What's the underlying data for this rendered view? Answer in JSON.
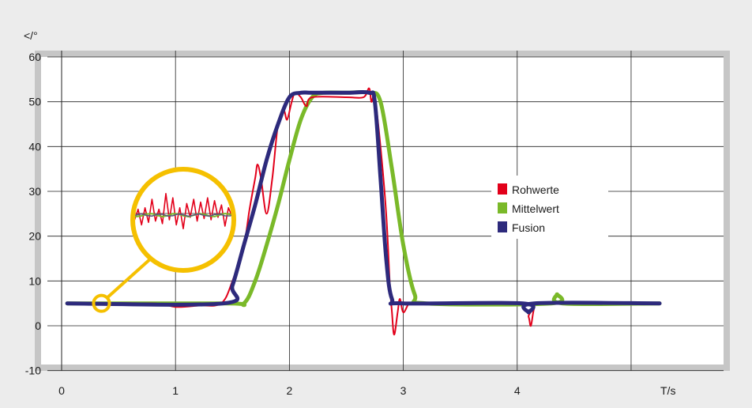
{
  "chart_data": {
    "type": "line",
    "ylabel": "</°",
    "xlabel": "T/s",
    "xlim": [
      0,
      5.25
    ],
    "ylim": [
      -10,
      60
    ],
    "x_ticks": [
      0,
      1,
      2,
      3,
      4
    ],
    "x_tick_labels": [
      "0",
      "1",
      "2",
      "3",
      "4"
    ],
    "y_ticks": [
      -10,
      0,
      10,
      20,
      30,
      40,
      50,
      60
    ],
    "y_tick_labels": [
      "-10",
      "0",
      "10",
      "20",
      "30",
      "40",
      "50",
      "60"
    ],
    "grid": true,
    "legend_position": "right",
    "series": [
      {
        "name": "Rohwerte",
        "color": "#e2001a",
        "x": [
          0.05,
          0.8,
          1.0,
          1.2,
          1.4,
          1.5,
          1.6,
          1.65,
          1.7,
          1.72,
          1.75,
          1.8,
          1.85,
          1.9,
          1.95,
          1.98,
          2.02,
          2.05,
          2.1,
          2.15,
          2.2,
          2.5,
          2.65,
          2.7,
          2.72,
          2.75,
          2.8,
          2.85,
          2.88,
          2.9,
          2.92,
          2.95,
          2.97,
          3.0,
          3.05,
          3.1,
          4.05,
          4.1,
          4.12,
          4.15,
          4.2,
          5.25
        ],
        "y": [
          5,
          5,
          4.2,
          4.5,
          5,
          10,
          18,
          26,
          33,
          36,
          33,
          25,
          33,
          45,
          48,
          46,
          50,
          52,
          51,
          49,
          51,
          51,
          51,
          53,
          50,
          51,
          40,
          25,
          10,
          3,
          -2,
          3,
          6,
          3,
          5,
          5,
          5,
          2,
          0,
          4,
          5,
          5
        ]
      },
      {
        "name": "Mittelwert",
        "color": "#7ab929",
        "x": [
          0.05,
          1.45,
          1.6,
          1.7,
          1.8,
          1.9,
          2.0,
          2.1,
          2.2,
          2.3,
          2.5,
          2.7,
          2.8,
          2.9,
          3.0,
          3.1,
          3.2,
          4.3,
          4.35,
          4.4,
          5.25
        ],
        "y": [
          5,
          5,
          5,
          10,
          18,
          27,
          37,
          46,
          51,
          52,
          52,
          52,
          50,
          35,
          18,
          7,
          5,
          5,
          7,
          5,
          5
        ]
      },
      {
        "name": "Fusion",
        "color": "#2d2a7c",
        "x": [
          0.05,
          1.42,
          1.5,
          1.6,
          1.7,
          1.8,
          1.9,
          2.0,
          2.1,
          2.2,
          2.5,
          2.7,
          2.75,
          2.8,
          2.85,
          2.9,
          3.0,
          4.05,
          4.1,
          4.15,
          5.25
        ],
        "y": [
          5,
          5,
          9,
          18,
          27,
          37,
          45,
          51,
          52,
          52,
          52,
          52,
          50,
          33,
          15,
          6,
          5,
          5,
          3,
          5,
          5
        ]
      }
    ]
  }
}
